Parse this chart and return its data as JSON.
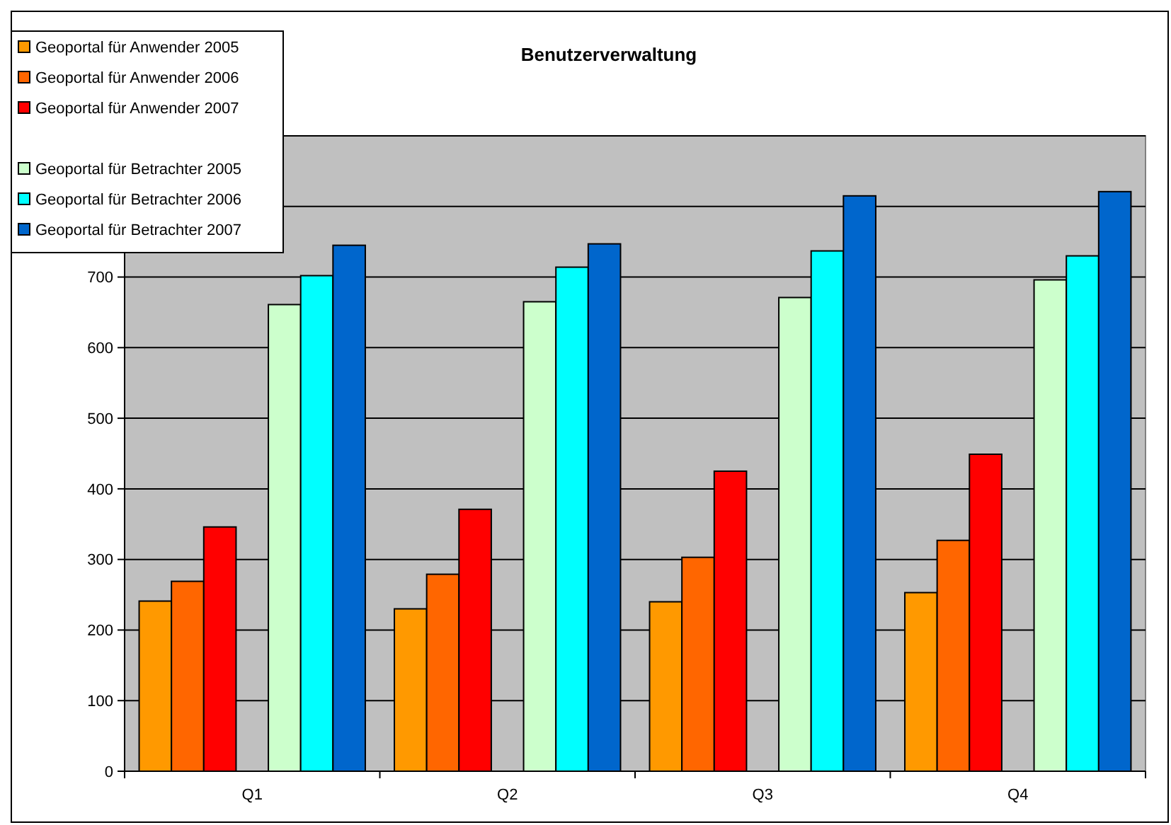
{
  "chart_data": {
    "type": "bar",
    "title": "Benutzerverwaltung",
    "categories": [
      "Q1",
      "Q2",
      "Q3",
      "Q4"
    ],
    "series": [
      {
        "name": "Geoportal für Anwender 2005",
        "color": "#ff9900",
        "values": [
          241,
          230,
          240,
          253
        ]
      },
      {
        "name": "Geoportal für Anwender 2006",
        "color": "#ff6600",
        "values": [
          269,
          279,
          303,
          327
        ]
      },
      {
        "name": "Geoportal für Anwender 2007",
        "color": "#ff0000",
        "values": [
          346,
          371,
          425,
          449
        ]
      },
      {
        "values": [
          null,
          null,
          null,
          null
        ]
      },
      {
        "name": "Geoportal für Betrachter 2005",
        "color": "#ccffcc",
        "values": [
          661,
          665,
          671,
          696
        ]
      },
      {
        "name": "Geoportal für Betrachter 2006",
        "color": "#00ffff",
        "values": [
          702,
          714,
          737,
          730
        ]
      },
      {
        "name": "Geoportal für Betrachter 2007",
        "color": "#0066cc",
        "values": [
          745,
          747,
          815,
          821
        ]
      }
    ],
    "ylim": [
      0,
      900
    ],
    "yticks": [
      0,
      100,
      200,
      300,
      400,
      500,
      600,
      700,
      {
        "value": 800,
        "label": null
      },
      {
        "value": 900,
        "label": null
      }
    ],
    "grid": "y",
    "legend": "top left"
  }
}
